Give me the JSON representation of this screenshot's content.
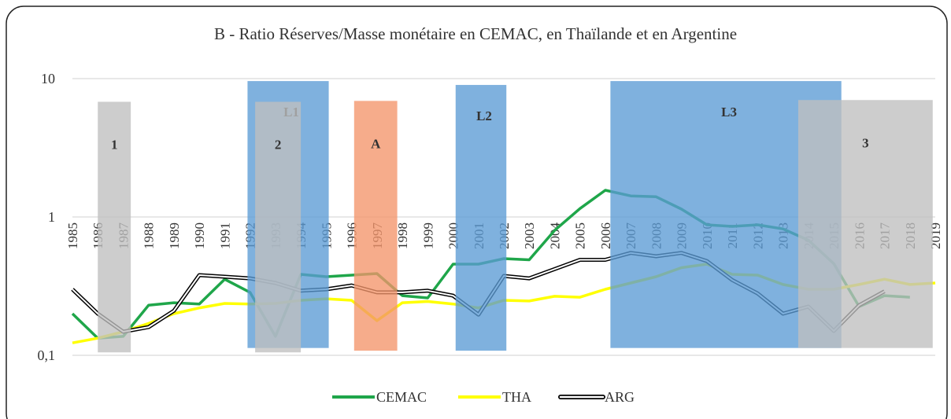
{
  "chart_data": {
    "type": "line",
    "title": "B - Ratio Réserves/Masse monétaire en CEMAC, en Thaïlande et en Argentine",
    "categories": [
      "1985",
      "1986",
      "1987",
      "1988",
      "1989",
      "1990",
      "1991",
      "1992",
      "1993",
      "1994",
      "1995",
      "1996",
      "1997",
      "1998",
      "1999",
      "2000",
      "2001",
      "2002",
      "2003",
      "2004",
      "2005",
      "2006",
      "2007",
      "2008",
      "2009",
      "2010",
      "2011",
      "2012",
      "2013",
      "2014",
      "2015",
      "2016",
      "2017",
      "2018",
      "2019"
    ],
    "log_scale": true,
    "grid": true,
    "legend": "bottom",
    "ylim": [
      0.1,
      10
    ],
    "yticks": [
      {
        "value": 0.1,
        "label": "0,1"
      },
      1,
      10
    ],
    "series": [
      {
        "name": "CEMAC",
        "color": "#1fa64a",
        "values": [
          0.2,
          0.133,
          0.137,
          0.23,
          0.24,
          0.235,
          0.355,
          0.285,
          0.137,
          0.385,
          0.37,
          0.38,
          0.39,
          0.27,
          0.26,
          0.456,
          0.456,
          0.5,
          0.49,
          0.8,
          1.15,
          1.56,
          1.42,
          1.4,
          1.14,
          0.877,
          0.855,
          0.877,
          0.82,
          0.68,
          0.46,
          0.225,
          0.27,
          0.263,
          null
        ]
      },
      {
        "name": "THA",
        "color": "#ffff00",
        "values": [
          0.123,
          0.133,
          0.148,
          0.17,
          0.2,
          0.22,
          0.237,
          0.235,
          0.237,
          0.25,
          0.256,
          0.25,
          0.178,
          0.24,
          0.245,
          0.235,
          0.22,
          0.25,
          0.247,
          0.267,
          0.263,
          0.3,
          0.333,
          0.37,
          0.43,
          0.456,
          0.385,
          0.38,
          0.325,
          0.3,
          0.3,
          0.325,
          0.355,
          0.325,
          0.333
        ]
      },
      {
        "name": "ARG",
        "color": "#000000",
        "values": [
          0.3,
          0.2,
          0.148,
          0.16,
          0.21,
          0.38,
          0.37,
          0.36,
          0.333,
          0.293,
          0.3,
          0.32,
          0.285,
          0.285,
          0.293,
          0.27,
          0.197,
          0.375,
          0.36,
          0.42,
          0.49,
          0.49,
          0.55,
          0.52,
          0.55,
          0.48,
          0.35,
          0.28,
          0.2,
          0.225,
          0.15,
          0.23,
          0.29,
          null,
          null
        ]
      }
    ],
    "bands": [
      {
        "label": "1",
        "color": "#bfbfbf",
        "start": 1986.0,
        "end": 1987.3,
        "y": [
          0.105,
          6.8
        ]
      },
      {
        "label": "L1",
        "color": "#5b9bd5",
        "start": 1991.9,
        "end": 1995.1,
        "y": [
          0.113,
          9.6
        ]
      },
      {
        "label": "2",
        "color": "#bfbfbf",
        "start": 1992.2,
        "end": 1994.0,
        "y": [
          0.105,
          6.8
        ]
      },
      {
        "label": "A",
        "color": "#f4956a",
        "start": 1996.1,
        "end": 1997.8,
        "y": [
          0.108,
          6.9
        ]
      },
      {
        "label": "L2",
        "color": "#5b9bd5",
        "start": 2000.1,
        "end": 2002.1,
        "y": [
          0.108,
          9.0
        ]
      },
      {
        "label": "L3",
        "color": "#5b9bd5",
        "start": 2006.2,
        "end": 2015.3,
        "y": [
          0.113,
          9.6
        ]
      },
      {
        "label": "3",
        "color": "#bfbfbf",
        "start": 2013.6,
        "end": 2018.9,
        "y": [
          0.113,
          7.0
        ]
      }
    ]
  }
}
